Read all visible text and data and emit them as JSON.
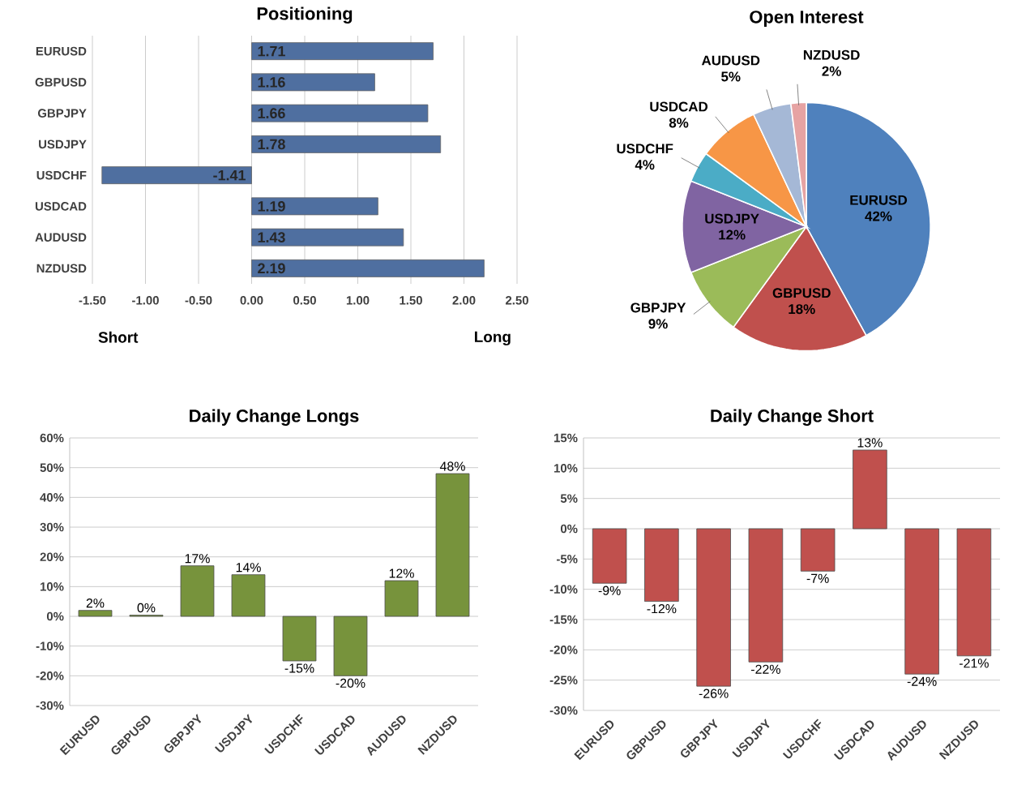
{
  "chart_data": [
    {
      "type": "bar",
      "orientation": "horizontal",
      "title": "Positioning",
      "categories": [
        "EURUSD",
        "GBPUSD",
        "GBPJPY",
        "USDJPY",
        "USDCHF",
        "USDCAD",
        "AUDUSD",
        "NZDUSD"
      ],
      "values": [
        1.71,
        1.16,
        1.66,
        1.78,
        -1.41,
        1.19,
        1.43,
        2.19
      ],
      "value_labels": [
        "1.71",
        "1.16",
        "1.66",
        "1.78",
        "-1.41",
        "1.19",
        "1.43",
        "2.19"
      ],
      "color": "#4f6fa0",
      "xlim": [
        -1.5,
        2.5
      ],
      "xticks": [
        {
          "value": -1.5,
          "label": "-1.50"
        },
        {
          "value": -1,
          "label": "-1.00"
        },
        {
          "value": -0.5,
          "label": "-0.50"
        },
        {
          "value": 0,
          "label": "0.00"
        },
        {
          "value": 0.5,
          "label": "0.50"
        },
        {
          "value": 1,
          "label": "1.00"
        },
        {
          "value": 1.5,
          "label": "1.50"
        },
        {
          "value": 2,
          "label": "2.00"
        },
        {
          "value": 2.5,
          "label": "2.50"
        }
      ],
      "grid": "x",
      "annotations": [
        "Short",
        "Long"
      ]
    },
    {
      "type": "pie",
      "title": "Open Interest",
      "categories": [
        "EURUSD",
        "GBPUSD",
        "GBPJPY",
        "USDJPY",
        "USDCHF",
        "USDCAD",
        "AUDUSD",
        "NZDUSD"
      ],
      "values": [
        42,
        18,
        9,
        12,
        4,
        8,
        5,
        2
      ],
      "value_labels": [
        "42%",
        "18%",
        "9%",
        "12%",
        "4%",
        "8%",
        "5%",
        "2%"
      ],
      "colors": [
        "#4f81bd",
        "#c0504d",
        "#9bbb59",
        "#8064a2",
        "#4bacc6",
        "#f79646",
        "#a5b8d6",
        "#e6a3a3"
      ]
    },
    {
      "type": "bar",
      "title": "Daily Change Longs",
      "categories": [
        "EURUSD",
        "GBPUSD",
        "GBPJPY",
        "USDJPY",
        "USDCHF",
        "USDCAD",
        "AUDUSD",
        "NZDUSD"
      ],
      "values": [
        2,
        0.4,
        17,
        14,
        -15,
        -20,
        12,
        48
      ],
      "value_labels": [
        "2%",
        "0%",
        "17%",
        "14%",
        "-15%",
        "-20%",
        "12%",
        "48%"
      ],
      "color": "#77933c",
      "ylim": [
        -30,
        60
      ],
      "yticks": [
        {
          "value": -30,
          "label": "-30%"
        },
        {
          "value": -20,
          "label": "-20%"
        },
        {
          "value": -10,
          "label": "-10%"
        },
        {
          "value": 0,
          "label": "0%"
        },
        {
          "value": 10,
          "label": "10%"
        },
        {
          "value": 20,
          "label": "20%"
        },
        {
          "value": 30,
          "label": "30%"
        },
        {
          "value": 40,
          "label": "40%"
        },
        {
          "value": 50,
          "label": "50%"
        },
        {
          "value": 60,
          "label": "60%"
        }
      ],
      "grid": "y"
    },
    {
      "type": "bar",
      "title": "Daily Change Short",
      "categories": [
        "EURUSD",
        "GBPUSD",
        "GBPJPY",
        "USDJPY",
        "USDCHF",
        "USDCAD",
        "AUDUSD",
        "NZDUSD"
      ],
      "values": [
        -9,
        -12,
        -26,
        -22,
        -7,
        13,
        -24,
        -21
      ],
      "value_labels": [
        "-9%",
        "-12%",
        "-26%",
        "-22%",
        "-7%",
        "13%",
        "-24%",
        "-21%"
      ],
      "color": "#c0504d",
      "ylim": [
        -30,
        15
      ],
      "yticks": [
        {
          "value": -30,
          "label": "-30%"
        },
        {
          "value": -25,
          "label": "-25%"
        },
        {
          "value": -20,
          "label": "-20%"
        },
        {
          "value": -15,
          "label": "-15%"
        },
        {
          "value": -10,
          "label": "-10%"
        },
        {
          "value": -5,
          "label": "-5%"
        },
        {
          "value": 0,
          "label": "0%"
        },
        {
          "value": 5,
          "label": "5%"
        },
        {
          "value": 10,
          "label": "10%"
        },
        {
          "value": 15,
          "label": "15%"
        }
      ],
      "grid": "y"
    }
  ]
}
